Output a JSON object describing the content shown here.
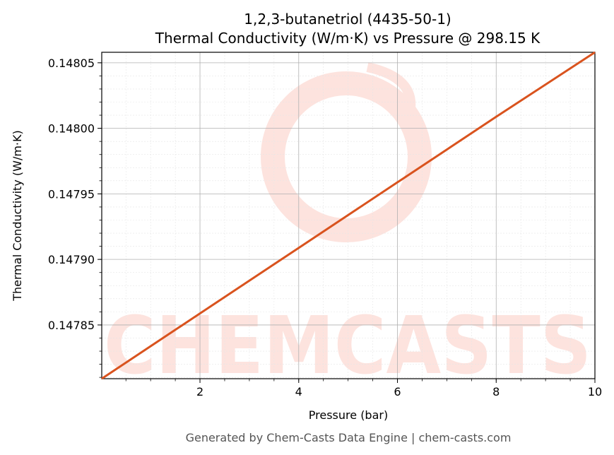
{
  "chart_data": {
    "type": "line",
    "title": "1,2,3-butanetriol (4435-50-1)",
    "subtitle": "Thermal Conductivity (W/m·K) vs Pressure @ 298.15 K",
    "xlabel": "Pressure (bar)",
    "ylabel": "Thermal Conductivity (W/m·K)",
    "xlim": [
      0.01,
      10
    ],
    "ylim": [
      0.147809,
      0.148058
    ],
    "x_ticks": [
      2,
      4,
      6,
      8,
      10
    ],
    "x_tick_labels": [
      "2",
      "4",
      "6",
      "8",
      "10"
    ],
    "y_ticks": [
      0.14785,
      0.1479,
      0.14795,
      0.148,
      0.14805
    ],
    "y_tick_labels": [
      "0.14785",
      "0.14790",
      "0.14795",
      "0.14800",
      "0.14805"
    ],
    "grid": true,
    "series": [
      {
        "x": [
          0.01,
          2,
          4,
          6,
          8,
          10
        ],
        "y": [
          0.147809,
          0.1478588,
          0.1479088,
          0.1479588,
          0.1480088,
          0.148058
        ],
        "color": "#d9531e"
      }
    ]
  },
  "footer": "Generated by Chem-Casts Data Engine | chem-casts.com",
  "watermark": {
    "text": "CHEMCASTS",
    "color": "#fde3de"
  },
  "colors": {
    "line": "#d9531e",
    "grid_major": "#b0b0b0",
    "grid_minor": "#e6e6e6"
  }
}
